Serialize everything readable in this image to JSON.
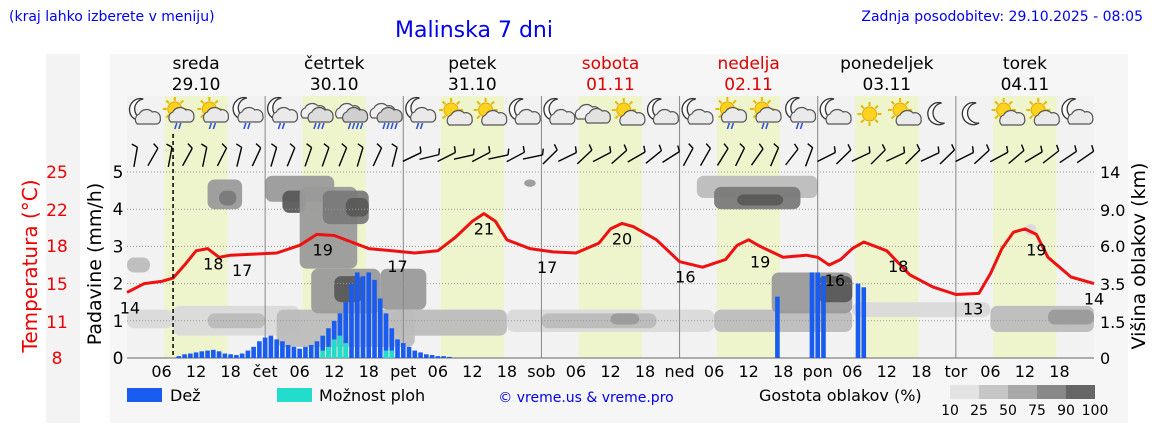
{
  "header": {
    "location_note": "(kraj lahko izberete v meniju)",
    "title": "Malinska 7 dni",
    "last_update": "Zadnja posodobitev: 29.10.2025 - 08:05"
  },
  "days": [
    {
      "name": "sreda",
      "date": "29.10",
      "weekend": false
    },
    {
      "name": "četrtek",
      "date": "30.10",
      "weekend": false
    },
    {
      "name": "petek",
      "date": "31.10",
      "weekend": false
    },
    {
      "name": "sobota",
      "date": "01.11",
      "weekend": true
    },
    {
      "name": "nedelja",
      "date": "02.11",
      "weekend": true
    },
    {
      "name": "ponedeljek",
      "date": "03.11",
      "weekend": false
    },
    {
      "name": "torek",
      "date": "04.11",
      "weekend": false
    }
  ],
  "hour_labels": [
    "06",
    "12",
    "18",
    "čet",
    "06",
    "12",
    "18",
    "pet",
    "06",
    "12",
    "18",
    "sob",
    "06",
    "12",
    "18",
    "ned",
    "06",
    "12",
    "18",
    "pon",
    "06",
    "12",
    "18",
    "tor",
    "06",
    "12",
    "18"
  ],
  "icons": [
    {
      "h": 3,
      "t": "moon-cloud"
    },
    {
      "h": 9,
      "t": "sun-cloud-rain"
    },
    {
      "h": 15,
      "t": "sun-cloud-rain"
    },
    {
      "h": 21,
      "t": "moon-cloud-rain"
    },
    {
      "h": 27,
      "t": "moon-cloud-rain"
    },
    {
      "h": 33,
      "t": "cloud-rain"
    },
    {
      "h": 39,
      "t": "cloud-heavy-rain"
    },
    {
      "h": 45,
      "t": "cloud-heavy-rain"
    },
    {
      "h": 51,
      "t": "moon-cloud-rain"
    },
    {
      "h": 57,
      "t": "sun-cloud"
    },
    {
      "h": 63,
      "t": "sun-cloud"
    },
    {
      "h": 69,
      "t": "moon-cloud"
    },
    {
      "h": 75,
      "t": "moon-cloud"
    },
    {
      "h": 81,
      "t": "cloud"
    },
    {
      "h": 87,
      "t": "sun-cloud"
    },
    {
      "h": 93,
      "t": "moon-cloud"
    },
    {
      "h": 99,
      "t": "moon-cloud"
    },
    {
      "h": 105,
      "t": "sun-cloud-rain"
    },
    {
      "h": 111,
      "t": "sun-cloud-rain"
    },
    {
      "h": 117,
      "t": "moon-cloud-rain"
    },
    {
      "h": 123,
      "t": "moon-cloud"
    },
    {
      "h": 129,
      "t": "sun"
    },
    {
      "h": 135,
      "t": "sun-cloud"
    },
    {
      "h": 141,
      "t": "moon"
    },
    {
      "h": 147,
      "t": "moon"
    },
    {
      "h": 153,
      "t": "sun-cloud"
    },
    {
      "h": 159,
      "t": "sun-cloud"
    },
    {
      "h": 165,
      "t": "moon-cloud"
    }
  ],
  "axes": {
    "left_temp_label": "Temperatura (°C)",
    "left_temp_ticks": [
      "25",
      "22",
      "18",
      "15",
      "11",
      "8"
    ],
    "left_precip_label": "Padavine (mm/h)",
    "left_precip_ticks": [
      "5",
      "4",
      "3",
      "2",
      "1",
      "0"
    ],
    "right_label": "Višina oblakov (km)",
    "right_ticks": [
      "14",
      "9.0",
      "6.0",
      "3.5",
      "1.5",
      "0"
    ]
  },
  "legend": {
    "rain": "Dež",
    "storm": "Možnost ploh",
    "credit": "© vreme.us & vreme.pro",
    "cloud_title": "Gostota oblakov (%)",
    "cloud_levels": [
      "10",
      "25",
      "50",
      "75",
      "90",
      "100"
    ]
  },
  "colors": {
    "temp_line": "#ee1111",
    "rain": "#1a5cf0",
    "storm": "#22ddcc",
    "day_band": "#eef5cc",
    "night_band": "#f2f2f2",
    "title_blue": "#0000ee",
    "weekend_red": "#dd0000",
    "cloud_shades": [
      "#d9d9d9",
      "#bcbcbc",
      "#9a9a9a",
      "#7a7a7a",
      "#5a5a5a"
    ]
  },
  "chart_data": {
    "type": "line",
    "title": "Malinska 7 dni",
    "x_unit": "hours since 29.10.2025 00:00",
    "xlim": [
      0,
      168
    ],
    "now_hour": 8,
    "temperature": {
      "name": "Temperatura (°C)",
      "ylim": [
        8,
        25
      ],
      "x": [
        0,
        3,
        6,
        8,
        10,
        12,
        14,
        16,
        18,
        22,
        26,
        30,
        33,
        36,
        39,
        42,
        46,
        50,
        54,
        57,
        60,
        62,
        64,
        66,
        70,
        74,
        78,
        82,
        84,
        86,
        88,
        92,
        96,
        100,
        104,
        106,
        108,
        110,
        114,
        118,
        120,
        122,
        124,
        126,
        128,
        132,
        136,
        140,
        144,
        148,
        150,
        152,
        154,
        156,
        158,
        160,
        164,
        168
      ],
      "y": [
        14,
        14.8,
        15,
        15.3,
        16.5,
        17.8,
        18,
        17.2,
        17.4,
        17.5,
        17.6,
        18.3,
        19.3,
        19.2,
        18.6,
        18,
        17.8,
        17.6,
        17.8,
        19,
        20.5,
        21.2,
        20.5,
        18.8,
        18,
        17.7,
        17.6,
        18.5,
        19.8,
        20.3,
        20,
        18.8,
        16.8,
        16.3,
        17,
        18.3,
        18.8,
        18.2,
        17.2,
        17.4,
        17.2,
        16.5,
        17,
        18,
        18.6,
        17.8,
        15.6,
        14.5,
        13.8,
        13.9,
        15.7,
        18,
        19.5,
        19.8,
        19.3,
        17.2,
        15.4,
        14.8
      ],
      "labels": [
        {
          "x": 0.5,
          "value": "14"
        },
        {
          "x": 15,
          "value": "18"
        },
        {
          "x": 20,
          "value": "17"
        },
        {
          "x": 34,
          "value": "19"
        },
        {
          "x": 47,
          "value": "17"
        },
        {
          "x": 62,
          "value": "21"
        },
        {
          "x": 73,
          "value": "17"
        },
        {
          "x": 86,
          "value": "20"
        },
        {
          "x": 97,
          "value": "16"
        },
        {
          "x": 110,
          "value": "19"
        },
        {
          "x": 123,
          "value": "16"
        },
        {
          "x": 134,
          "value": "18"
        },
        {
          "x": 147,
          "value": "13"
        },
        {
          "x": 158,
          "value": "19"
        },
        {
          "x": 168,
          "value": "14"
        }
      ]
    },
    "precipitation": {
      "name": "Padavine (mm/h)",
      "ylim": [
        0,
        5
      ],
      "bar_width_hours": 0.8,
      "rain_hours": [
        9,
        10,
        11,
        12,
        13,
        14,
        15,
        16,
        17,
        18,
        19,
        20,
        21,
        22,
        23,
        24,
        25,
        26,
        27,
        28,
        29,
        30,
        31,
        32,
        33,
        34,
        35,
        36,
        37,
        38,
        39,
        40,
        41,
        42,
        43,
        44,
        45,
        46,
        47,
        48,
        49,
        50,
        51,
        52,
        53,
        54,
        55,
        56,
        113,
        119,
        120,
        121,
        127,
        128
      ],
      "rain_values": [
        0.05,
        0.1,
        0.12,
        0.15,
        0.18,
        0.2,
        0.22,
        0.18,
        0.12,
        0.1,
        0.08,
        0.12,
        0.2,
        0.3,
        0.45,
        0.55,
        0.6,
        0.5,
        0.45,
        0.35,
        0.3,
        0.25,
        0.3,
        0.35,
        0.45,
        0.6,
        0.8,
        1.0,
        1.2,
        1.5,
        2.0,
        2.3,
        2.2,
        2.3,
        2.1,
        1.6,
        1.2,
        0.8,
        0.5,
        0.4,
        0.3,
        0.2,
        0.15,
        0.1,
        0.08,
        0.05,
        0.05,
        0.03,
        1.65,
        2.3,
        2.3,
        2.2,
        2.0,
        1.9
      ],
      "storm_hours": [
        34,
        35,
        36,
        37,
        38,
        45,
        46
      ],
      "storm_values": [
        0.2,
        0.3,
        0.5,
        0.6,
        0.4,
        0.2,
        0.2
      ]
    },
    "cloud_height": {
      "name": "Višina oblakov (km)",
      "ticks": [
        "0",
        "1.5",
        "3.5",
        "6.0",
        "9.0",
        "14"
      ],
      "patches": [
        {
          "x0": 0,
          "x1": 8,
          "y0": 0.8,
          "y1": 1.3,
          "level": 1
        },
        {
          "x0": 0,
          "x1": 4,
          "y0": 2.3,
          "y1": 2.7,
          "level": 2
        },
        {
          "x0": 8,
          "x1": 30,
          "y0": 0.6,
          "y1": 1.4,
          "level": 1
        },
        {
          "x0": 14,
          "x1": 24,
          "y0": 0.8,
          "y1": 1.2,
          "level": 2
        },
        {
          "x0": 14,
          "x1": 20,
          "y0": 4.0,
          "y1": 4.8,
          "level": 3
        },
        {
          "x0": 16,
          "x1": 19,
          "y0": 4.1,
          "y1": 4.5,
          "level": 4
        },
        {
          "x0": 24,
          "x1": 36,
          "y0": 4.2,
          "y1": 4.9,
          "level": 3
        },
        {
          "x0": 27,
          "x1": 31,
          "y0": 3.9,
          "y1": 4.5,
          "level": 5
        },
        {
          "x0": 26,
          "x1": 50,
          "y0": 0.3,
          "y1": 1.3,
          "level": 2
        },
        {
          "x0": 30,
          "x1": 40,
          "y0": 2.4,
          "y1": 4.6,
          "level": 3
        },
        {
          "x0": 34,
          "x1": 42,
          "y0": 3.6,
          "y1": 4.5,
          "level": 4
        },
        {
          "x0": 38,
          "x1": 42,
          "y0": 3.8,
          "y1": 4.3,
          "level": 5
        },
        {
          "x0": 32,
          "x1": 44,
          "y0": 1.2,
          "y1": 2.4,
          "level": 3
        },
        {
          "x0": 36,
          "x1": 41,
          "y0": 1.5,
          "y1": 2.2,
          "level": 5
        },
        {
          "x0": 44,
          "x1": 52,
          "y0": 1.3,
          "y1": 2.4,
          "level": 3
        },
        {
          "x0": 46,
          "x1": 66,
          "y0": 0.6,
          "y1": 1.3,
          "level": 2
        },
        {
          "x0": 66,
          "x1": 102,
          "y0": 0.7,
          "y1": 1.3,
          "level": 1
        },
        {
          "x0": 72,
          "x1": 92,
          "y0": 0.8,
          "y1": 1.2,
          "level": 2
        },
        {
          "x0": 84,
          "x1": 89,
          "y0": 0.9,
          "y1": 1.2,
          "level": 3
        },
        {
          "x0": 69,
          "x1": 71,
          "y0": 4.6,
          "y1": 4.8,
          "level": 3
        },
        {
          "x0": 99,
          "x1": 120,
          "y0": 4.3,
          "y1": 4.9,
          "level": 2
        },
        {
          "x0": 102,
          "x1": 117,
          "y0": 4.0,
          "y1": 4.6,
          "level": 4
        },
        {
          "x0": 106,
          "x1": 114,
          "y0": 4.1,
          "y1": 4.4,
          "level": 5
        },
        {
          "x0": 102,
          "x1": 126,
          "y0": 0.7,
          "y1": 1.3,
          "level": 2
        },
        {
          "x0": 112,
          "x1": 126,
          "y0": 1.2,
          "y1": 2.3,
          "level": 3
        },
        {
          "x0": 120,
          "x1": 126,
          "y0": 1.5,
          "y1": 2.2,
          "level": 5
        },
        {
          "x0": 126,
          "x1": 150,
          "y0": 1.1,
          "y1": 1.5,
          "level": 1
        },
        {
          "x0": 150,
          "x1": 168,
          "y0": 0.7,
          "y1": 1.4,
          "level": 2
        },
        {
          "x0": 160,
          "x1": 168,
          "y0": 0.9,
          "y1": 1.3,
          "level": 3
        },
        {
          "x0": 156,
          "x1": 158,
          "y0": 3.3,
          "y1": 3.6,
          "level": 1
        }
      ]
    }
  }
}
